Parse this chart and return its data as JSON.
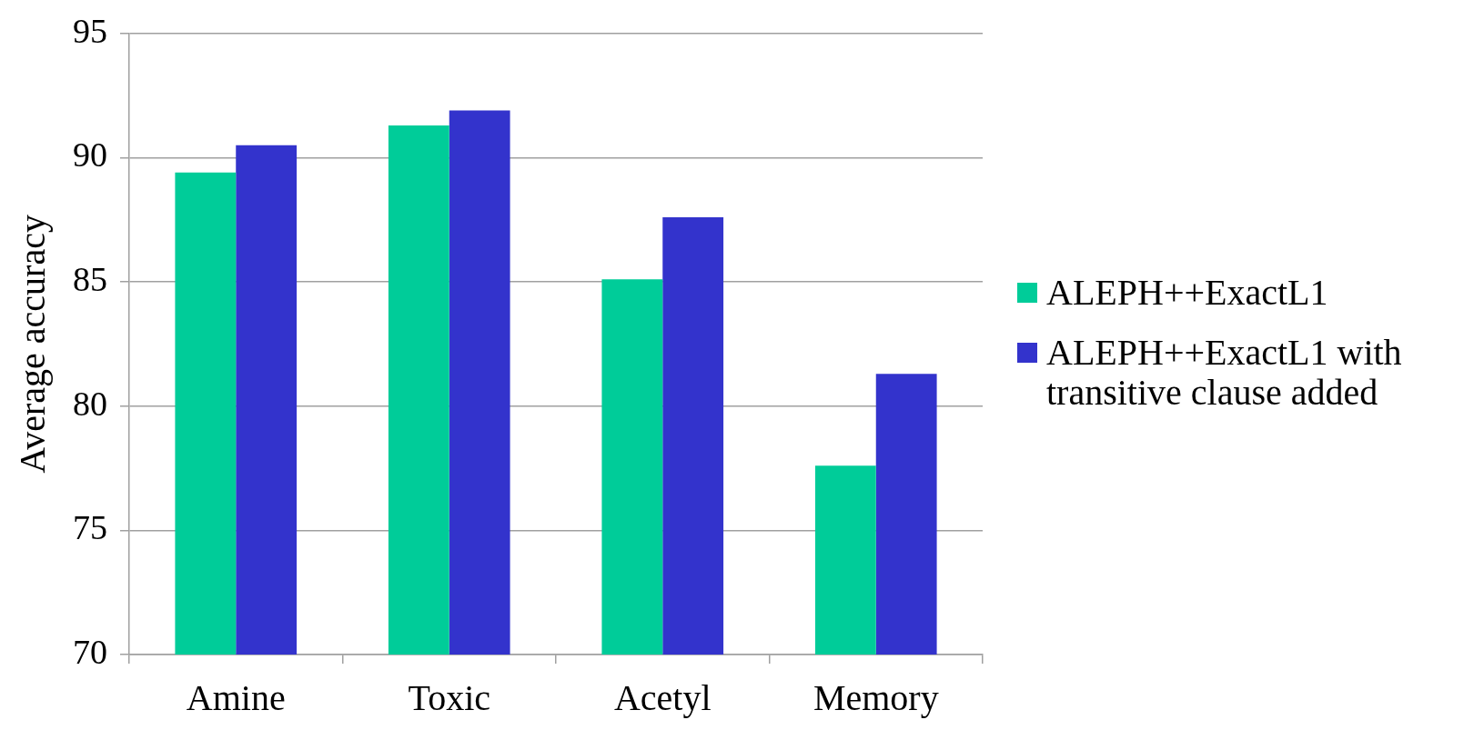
{
  "chart_data": {
    "type": "bar",
    "ylabel": "Average accuracy",
    "categories": [
      "Amine",
      "Toxic",
      "Acetyl",
      "Memory"
    ],
    "series": [
      {
        "name": "ALEPH++ExactL1",
        "color": "#00cc99",
        "values": [
          89.4,
          91.3,
          85.1,
          77.6
        ]
      },
      {
        "name": "ALEPH++ExactL1 with transitive clause added",
        "color": "#3333cc",
        "values": [
          90.5,
          91.9,
          87.6,
          81.3
        ]
      }
    ],
    "ylim": [
      70,
      95
    ],
    "yticks": [
      70,
      75,
      80,
      85,
      90,
      95
    ],
    "grid": "y",
    "legend": "right"
  }
}
